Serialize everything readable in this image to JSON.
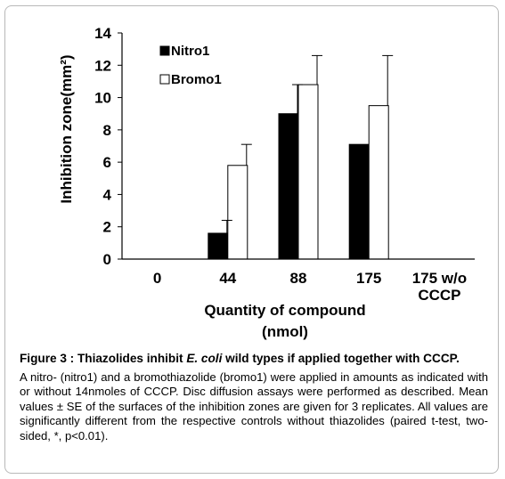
{
  "chart_data": {
    "type": "bar",
    "categories": [
      "0",
      "44",
      "88",
      "175",
      "175 w/o CCCP"
    ],
    "series": [
      {
        "name": "Nitro1",
        "color": "#000000",
        "values": [
          0,
          1.6,
          9.0,
          7.1,
          0
        ],
        "errors": [
          0,
          0.8,
          1.8,
          0,
          0
        ]
      },
      {
        "name": "Bromo1",
        "color": "#ffffff",
        "values": [
          0,
          5.8,
          10.8,
          9.5,
          0
        ],
        "errors": [
          0,
          1.3,
          1.8,
          3.1,
          0
        ]
      }
    ],
    "xlabel_line1": "Quantity of compound",
    "xlabel_line2": "(nmol)",
    "ylabel": "Inhibition zone(mm²)",
    "ylim": [
      0,
      14
    ],
    "yticks": [
      "0",
      "2",
      "4",
      "6",
      "8",
      "10",
      "12",
      "14"
    ],
    "legend_position": "top-left",
    "grid": false
  },
  "caption": {
    "title_prefix": "Figure 3 : Thiazolides inhibit ",
    "title_italic": "E. coli",
    "title_suffix": " wild types if applied together with CCCP.",
    "body": "A nitro- (nitro1) and a bromothiazolide (bromo1) were applied in amounts as indicated with or without 14nmoles of CCCP. Disc diffusion assays were performed as described. Mean values ± SE of the surfaces of the inhibition zones are given for 3 replicates. All values are significantly different from the respective controls without thiazolides (paired t-test, two-sided, *, p<0.01)."
  }
}
